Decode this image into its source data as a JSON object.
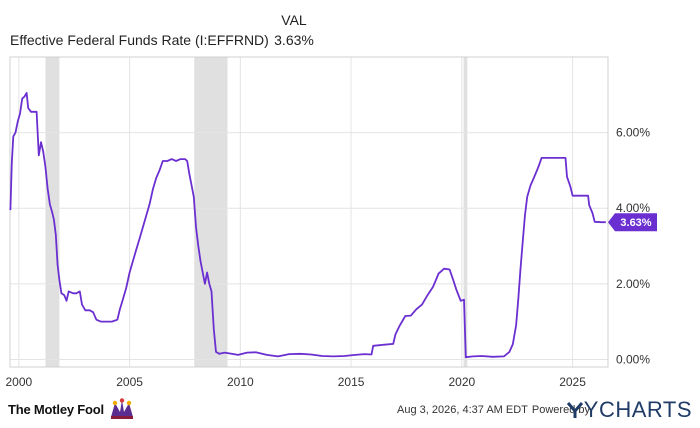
{
  "legend": {
    "column_header": "VAL",
    "series_name": "Effective Federal Funds Rate (I:EFFRND)",
    "latest_value": "3.63%"
  },
  "footer": {
    "brand": "The Motley Fool",
    "timestamp": "Aug 3, 2026, 4:37 AM EDT",
    "powered_by": "Powered by",
    "provider": "YCHARTS"
  },
  "colors": {
    "line": "#6b2fd1",
    "recession": "#e0e0e0",
    "grid": "#e4e4e4",
    "axis_text": "#333333",
    "badge_text": "#ffffff"
  },
  "chart_data": {
    "type": "line",
    "title": "",
    "xlabel": "",
    "ylabel": "",
    "xlim": [
      1999.6,
      2026.6
    ],
    "ylim": [
      -0.2,
      8.0
    ],
    "x_ticks": [
      2000,
      2005,
      2010,
      2015,
      2020,
      2025
    ],
    "y_ticks": [
      0,
      2,
      4,
      6
    ],
    "x_tick_labels": [
      "2000",
      "2005",
      "2010",
      "2015",
      "2020",
      "2025"
    ],
    "y_tick_labels": [
      "0.00%",
      "2.00%",
      "4.00%",
      "6.00%"
    ],
    "recessions": [
      [
        2001.2,
        2001.83
      ],
      [
        2007.92,
        2009.42
      ],
      [
        2020.08,
        2020.25
      ]
    ],
    "current_value_label": "3.63%",
    "current_value": 3.63,
    "grid": true,
    "series": [
      {
        "name": "Effective Federal Funds Rate (I:EFFRND)",
        "points": [
          [
            1999.62,
            3.95
          ],
          [
            1999.68,
            5.2
          ],
          [
            1999.75,
            5.9
          ],
          [
            1999.85,
            6.0
          ],
          [
            1999.95,
            6.3
          ],
          [
            2000.05,
            6.5
          ],
          [
            2000.15,
            6.9
          ],
          [
            2000.25,
            6.95
          ],
          [
            2000.35,
            7.05
          ],
          [
            2000.42,
            6.65
          ],
          [
            2000.55,
            6.55
          ],
          [
            2000.7,
            6.55
          ],
          [
            2000.8,
            6.55
          ],
          [
            2000.9,
            5.4
          ],
          [
            2001.0,
            5.75
          ],
          [
            2001.1,
            5.5
          ],
          [
            2001.2,
            5.1
          ],
          [
            2001.3,
            4.5
          ],
          [
            2001.4,
            4.1
          ],
          [
            2001.5,
            3.9
          ],
          [
            2001.58,
            3.7
          ],
          [
            2001.67,
            3.3
          ],
          [
            2001.75,
            2.5
          ],
          [
            2001.83,
            2.1
          ],
          [
            2001.92,
            1.75
          ],
          [
            2002.05,
            1.7
          ],
          [
            2002.15,
            1.55
          ],
          [
            2002.25,
            1.8
          ],
          [
            2002.45,
            1.75
          ],
          [
            2002.6,
            1.75
          ],
          [
            2002.75,
            1.8
          ],
          [
            2002.85,
            1.45
          ],
          [
            2003.0,
            1.3
          ],
          [
            2003.2,
            1.3
          ],
          [
            2003.35,
            1.25
          ],
          [
            2003.5,
            1.05
          ],
          [
            2003.7,
            1.0
          ],
          [
            2003.9,
            1.0
          ],
          [
            2004.2,
            1.0
          ],
          [
            2004.45,
            1.05
          ],
          [
            2004.55,
            1.3
          ],
          [
            2004.7,
            1.6
          ],
          [
            2004.85,
            1.9
          ],
          [
            2005.0,
            2.3
          ],
          [
            2005.15,
            2.6
          ],
          [
            2005.3,
            2.9
          ],
          [
            2005.45,
            3.2
          ],
          [
            2005.6,
            3.5
          ],
          [
            2005.75,
            3.8
          ],
          [
            2005.9,
            4.1
          ],
          [
            2006.05,
            4.5
          ],
          [
            2006.2,
            4.8
          ],
          [
            2006.35,
            5.0
          ],
          [
            2006.5,
            5.25
          ],
          [
            2006.7,
            5.25
          ],
          [
            2006.9,
            5.3
          ],
          [
            2007.1,
            5.25
          ],
          [
            2007.3,
            5.3
          ],
          [
            2007.5,
            5.3
          ],
          [
            2007.6,
            5.25
          ],
          [
            2007.7,
            4.9
          ],
          [
            2007.8,
            4.6
          ],
          [
            2007.9,
            4.3
          ],
          [
            2008.0,
            3.5
          ],
          [
            2008.1,
            3.0
          ],
          [
            2008.2,
            2.6
          ],
          [
            2008.3,
            2.3
          ],
          [
            2008.4,
            2.0
          ],
          [
            2008.5,
            2.3
          ],
          [
            2008.6,
            2.0
          ],
          [
            2008.7,
            1.8
          ],
          [
            2008.8,
            0.8
          ],
          [
            2008.9,
            0.2
          ],
          [
            2009.05,
            0.15
          ],
          [
            2009.3,
            0.18
          ],
          [
            2009.6,
            0.15
          ],
          [
            2009.9,
            0.12
          ],
          [
            2010.3,
            0.18
          ],
          [
            2010.7,
            0.19
          ],
          [
            2011.2,
            0.12
          ],
          [
            2011.7,
            0.08
          ],
          [
            2012.2,
            0.14
          ],
          [
            2012.7,
            0.15
          ],
          [
            2013.2,
            0.13
          ],
          [
            2013.7,
            0.09
          ],
          [
            2014.2,
            0.08
          ],
          [
            2014.7,
            0.09
          ],
          [
            2015.2,
            0.12
          ],
          [
            2015.6,
            0.14
          ],
          [
            2015.92,
            0.13
          ],
          [
            2016.0,
            0.36
          ],
          [
            2016.5,
            0.39
          ],
          [
            2016.9,
            0.41
          ],
          [
            2017.0,
            0.66
          ],
          [
            2017.2,
            0.9
          ],
          [
            2017.45,
            1.15
          ],
          [
            2017.7,
            1.16
          ],
          [
            2017.95,
            1.33
          ],
          [
            2018.2,
            1.45
          ],
          [
            2018.45,
            1.7
          ],
          [
            2018.7,
            1.92
          ],
          [
            2018.95,
            2.27
          ],
          [
            2019.2,
            2.4
          ],
          [
            2019.45,
            2.38
          ],
          [
            2019.6,
            2.12
          ],
          [
            2019.75,
            1.85
          ],
          [
            2019.95,
            1.55
          ],
          [
            2020.1,
            1.58
          ],
          [
            2020.18,
            0.06
          ],
          [
            2020.5,
            0.08
          ],
          [
            2020.9,
            0.09
          ],
          [
            2021.4,
            0.07
          ],
          [
            2021.9,
            0.08
          ],
          [
            2022.15,
            0.2
          ],
          [
            2022.3,
            0.4
          ],
          [
            2022.45,
            0.9
          ],
          [
            2022.55,
            1.6
          ],
          [
            2022.65,
            2.4
          ],
          [
            2022.75,
            3.1
          ],
          [
            2022.85,
            3.8
          ],
          [
            2022.95,
            4.3
          ],
          [
            2023.1,
            4.6
          ],
          [
            2023.25,
            4.8
          ],
          [
            2023.45,
            5.08
          ],
          [
            2023.6,
            5.33
          ],
          [
            2023.8,
            5.33
          ],
          [
            2024.1,
            5.33
          ],
          [
            2024.4,
            5.33
          ],
          [
            2024.68,
            5.33
          ],
          [
            2024.75,
            4.83
          ],
          [
            2024.9,
            4.58
          ],
          [
            2025.0,
            4.33
          ],
          [
            2025.3,
            4.33
          ],
          [
            2025.55,
            4.33
          ],
          [
            2025.7,
            4.33
          ],
          [
            2025.75,
            4.08
          ],
          [
            2025.9,
            3.87
          ],
          [
            2026.0,
            3.64
          ],
          [
            2026.3,
            3.63
          ],
          [
            2026.5,
            3.63
          ]
        ]
      }
    ]
  }
}
